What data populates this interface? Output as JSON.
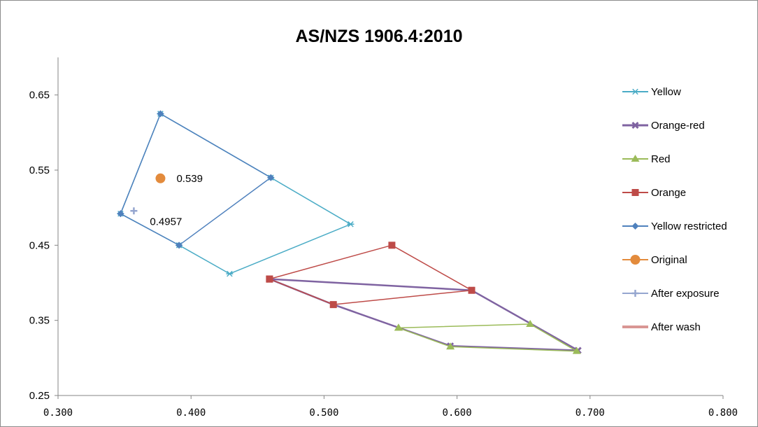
{
  "chart_data": {
    "type": "scatter",
    "title": "AS/NZS 1906.4:2010",
    "xlim": [
      0.3,
      0.8
    ],
    "ylim": [
      0.25,
      0.7
    ],
    "x_ticks": [
      {
        "value": 0.3,
        "label": "0.300"
      },
      {
        "value": 0.4,
        "label": "0.400"
      },
      {
        "value": 0.5,
        "label": "0.500"
      },
      {
        "value": 0.6,
        "label": "0.600"
      },
      {
        "value": 0.7,
        "label": "0.700"
      },
      {
        "value": 0.8,
        "label": "0.800"
      }
    ],
    "y_ticks": [
      {
        "value": 0.25,
        "label": "0.25"
      },
      {
        "value": 0.35,
        "label": "0.35"
      },
      {
        "value": 0.45,
        "label": "0.45"
      },
      {
        "value": 0.55,
        "label": "0.55"
      },
      {
        "value": 0.65,
        "label": "0.65"
      }
    ],
    "grid": false,
    "legend_position": "right",
    "series": [
      {
        "name": "Yellow",
        "color": "#4bacc6",
        "marker": "asterisk",
        "line": true,
        "line_width": 1.5,
        "points": [
          [
            0.377,
            0.625
          ],
          [
            0.347,
            0.492
          ],
          [
            0.391,
            0.45
          ],
          [
            0.429,
            0.412
          ],
          [
            0.52,
            0.478
          ],
          [
            0.46,
            0.54
          ],
          [
            0.377,
            0.625
          ]
        ]
      },
      {
        "name": "Orange-red",
        "color": "#7f63a1",
        "marker": "x",
        "line": true,
        "line_width": 2.5,
        "points": [
          [
            0.459,
            0.405
          ],
          [
            0.507,
            0.371
          ],
          [
            0.595,
            0.316
          ],
          [
            0.691,
            0.31
          ],
          [
            0.611,
            0.39
          ],
          [
            0.459,
            0.405
          ]
        ]
      },
      {
        "name": "Red",
        "color": "#9bbb59",
        "marker": "triangle",
        "line": true,
        "line_width": 1.5,
        "points": [
          [
            0.556,
            0.34
          ],
          [
            0.595,
            0.315
          ],
          [
            0.69,
            0.309
          ],
          [
            0.655,
            0.345
          ],
          [
            0.556,
            0.34
          ]
        ]
      },
      {
        "name": "Orange",
        "color": "#be4b48",
        "marker": "square",
        "line": true,
        "line_width": 1.5,
        "points": [
          [
            0.459,
            0.405
          ],
          [
            0.551,
            0.45
          ],
          [
            0.611,
            0.39
          ],
          [
            0.507,
            0.371
          ],
          [
            0.459,
            0.405
          ]
        ]
      },
      {
        "name": "Yellow restricted",
        "color": "#4f81bd",
        "marker": "diamond",
        "line": true,
        "line_width": 1.5,
        "points": [
          [
            0.347,
            0.492
          ],
          [
            0.377,
            0.625
          ],
          [
            0.46,
            0.54
          ],
          [
            0.391,
            0.45
          ],
          [
            0.347,
            0.492
          ]
        ]
      },
      {
        "name": "Original",
        "color": "#e38b3c",
        "marker": "circle",
        "line": false,
        "points": [
          [
            0.377,
            0.539
          ]
        ]
      },
      {
        "name": "After exposure",
        "color": "#95a6cf",
        "marker": "plus",
        "line": false,
        "points": [
          [
            0.357,
            0.4957
          ]
        ]
      },
      {
        "name": "After wash",
        "color": "#d99694",
        "marker": "none",
        "line": true,
        "line_width": 4,
        "points": []
      }
    ],
    "annotations": [
      {
        "text": "0.539",
        "x": 0.377,
        "y": 0.539
      },
      {
        "text": "0.4957",
        "x": 0.357,
        "y": 0.4957
      }
    ]
  }
}
